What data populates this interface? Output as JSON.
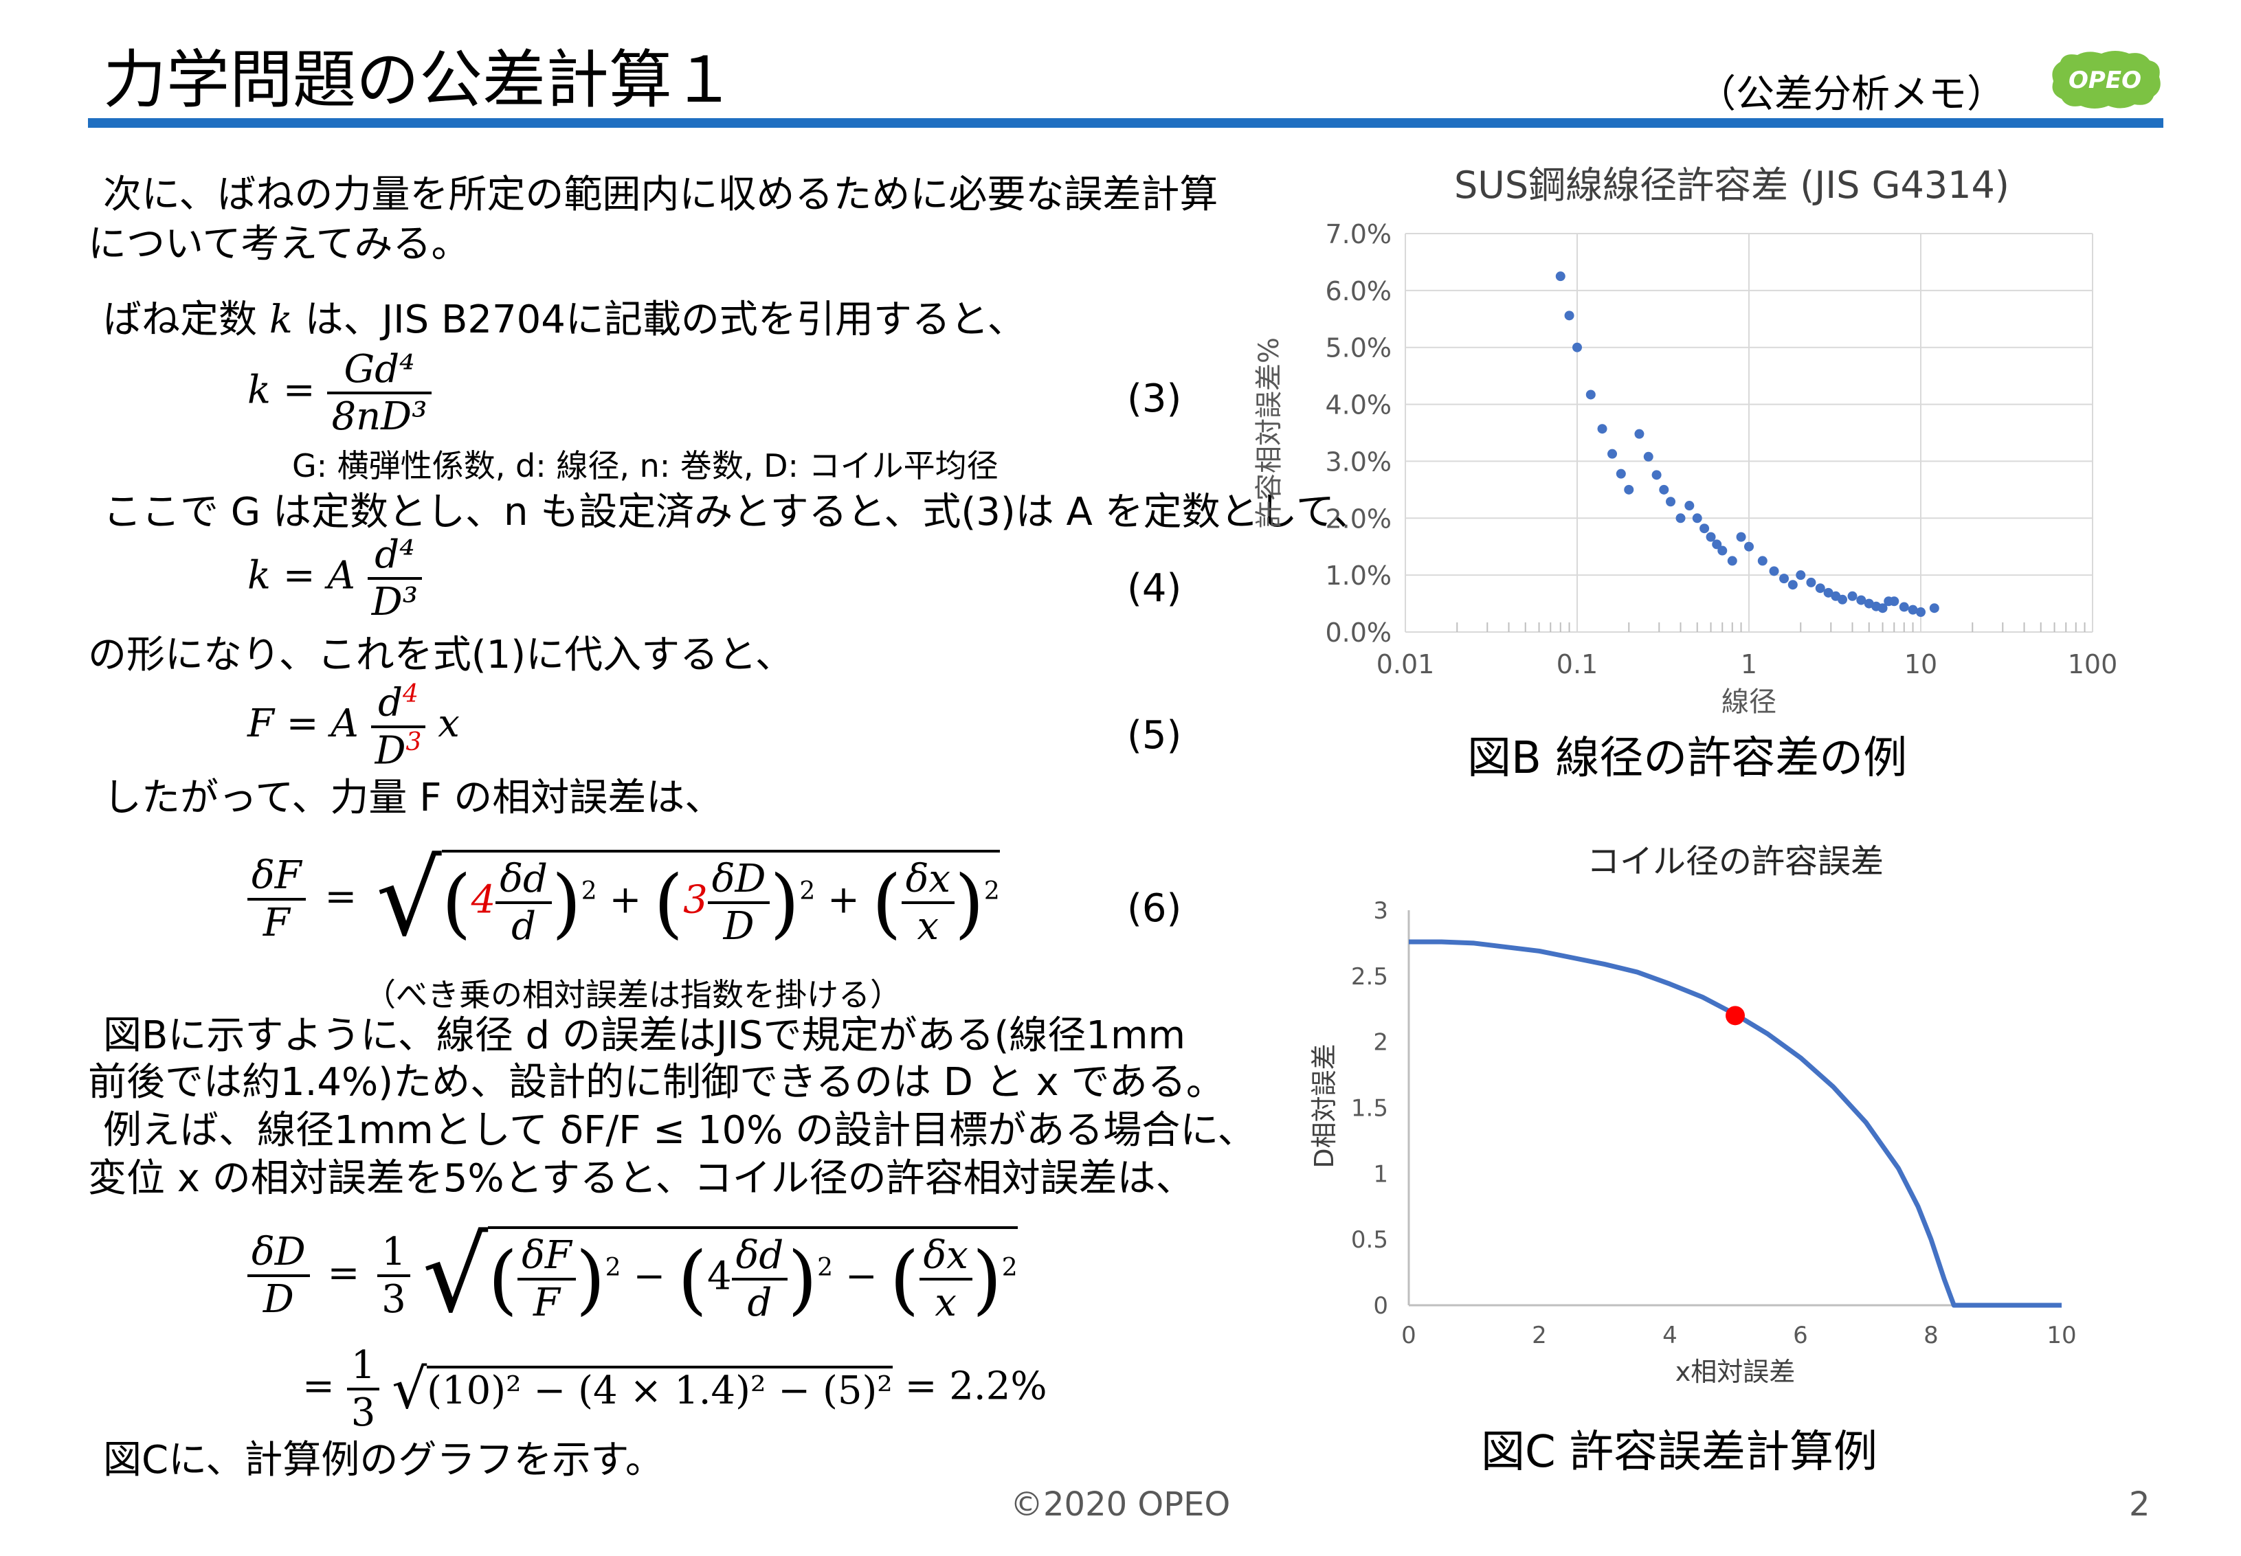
{
  "header": {
    "title": "力学問題の公差計算１",
    "subtitle": "（公差分析メモ）",
    "logo_text": "OPEO"
  },
  "body": {
    "p1_line1": "次に、ばねの力量を所定の範囲内に収めるために必要な誤差計算",
    "p1_line2": "について考えてみる。",
    "p2_a": "ばね定数",
    "p2_k": "k",
    "p2_b": "は、JIS B2704に記載の式を引用すると、",
    "eq3_lhs": "k =",
    "eq3_num": "Gd⁴",
    "eq3_den": "8nD³",
    "eq3_no": "(3)",
    "eq3_note": "G: 横弾性係数, d: 線径, n: 巻数, D: コイル平均径",
    "p3": "ここで G は定数とし、n も設定済みとすると、式(3)は A を定数として、",
    "eq4_lhs": "k = A",
    "eq4_num": "d⁴",
    "eq4_den": "D³",
    "eq4_no": "(4)",
    "p4": "の形になり、これを式(1)に代入すると、",
    "eq5_lhs": "F = A",
    "eq5_num_base": "d",
    "eq5_num_exp": "4",
    "eq5_den_base": "D",
    "eq5_den_exp": "3",
    "eq5_tail": "x",
    "eq5_no": "(5)",
    "p5": "したがって、力量 F の相対誤差は、",
    "eq6_lhs_num": "δF",
    "eq6_lhs_den": "F",
    "eq6_c1": "4",
    "eq6_t1_num": "δd",
    "eq6_t1_den": "d",
    "eq6_c2": "3",
    "eq6_t2_num": "δD",
    "eq6_t2_den": "D",
    "eq6_t3_num": "δx",
    "eq6_t3_den": "x",
    "eq6_no": "(6)",
    "eq6_note": "（べき乗の相対誤差は指数を掛ける）",
    "p6_line1": "図Bに示すように、線径 d の誤差はJISで規定がある(線径1mm",
    "p6_line2": "前後では約1.4%)ため、設計的に制御できるのは D と x である。",
    "p7_line1": "例えば、線径1mmとして δF/F ≤ 10% の設計目標がある場合に、",
    "p7_line2": "変位 x の相対誤差を5%とすると、コイル径の許容相対誤差は、",
    "eq7_lhs_num": "δD",
    "eq7_lhs_den": "D",
    "eq7_coef_num": "1",
    "eq7_coef_den": "3",
    "eq7_c": "4",
    "eq8_coef_num": "1",
    "eq8_coef_den": "3",
    "eq8_radicand": "(10)² − (4 × 1.4)² − (5)²",
    "eq8_result": "= 2.2%",
    "p8": "図Cに、計算例のグラフを示す。"
  },
  "figB": {
    "caption": "図B 線径の許容差の例"
  },
  "figC": {
    "caption": "図C 許容誤差計算例"
  },
  "footer": {
    "copyright": "©2020 OPEO",
    "page": "2"
  },
  "colors": {
    "accent": "#1f6fc1",
    "series": "#4472c4",
    "marker": "#ff0000",
    "logo": "#7cc243"
  },
  "chart_data": [
    {
      "type": "scatter",
      "title": "SUS鋼線線径許容差 (JIS G4314)",
      "xlabel": "線径",
      "ylabel": "許容相対誤差%",
      "x_scale": "log",
      "xlim": [
        0.01,
        100
      ],
      "ylim": [
        0,
        0.07
      ],
      "x_ticks": [
        "0.01",
        "0.1",
        "1",
        "10",
        "100"
      ],
      "y_ticks": [
        "0.0%",
        "1.0%",
        "2.0%",
        "3.0%",
        "4.0%",
        "5.0%",
        "6.0%",
        "7.0%"
      ],
      "grid": true,
      "points": [
        [
          0.08,
          0.0625
        ],
        [
          0.09,
          0.0556
        ],
        [
          0.1,
          0.05
        ],
        [
          0.12,
          0.0417
        ],
        [
          0.14,
          0.0357
        ],
        [
          0.16,
          0.0313
        ],
        [
          0.18,
          0.0278
        ],
        [
          0.2,
          0.025
        ],
        [
          0.23,
          0.0348
        ],
        [
          0.26,
          0.0308
        ],
        [
          0.29,
          0.0276
        ],
        [
          0.32,
          0.025
        ],
        [
          0.35,
          0.0229
        ],
        [
          0.4,
          0.02
        ],
        [
          0.45,
          0.0222
        ],
        [
          0.5,
          0.02
        ],
        [
          0.55,
          0.0182
        ],
        [
          0.6,
          0.0167
        ],
        [
          0.65,
          0.0154
        ],
        [
          0.7,
          0.0143
        ],
        [
          0.8,
          0.0125
        ],
        [
          0.9,
          0.0167
        ],
        [
          1.0,
          0.015
        ],
        [
          1.2,
          0.0125
        ],
        [
          1.4,
          0.0107
        ],
        [
          1.6,
          0.0094
        ],
        [
          1.8,
          0.0083
        ],
        [
          2.0,
          0.01
        ],
        [
          2.3,
          0.0087
        ],
        [
          2.6,
          0.0077
        ],
        [
          2.9,
          0.0069
        ],
        [
          3.2,
          0.0063
        ],
        [
          3.5,
          0.0057
        ],
        [
          4.0,
          0.0063
        ],
        [
          4.5,
          0.0056
        ],
        [
          5.0,
          0.005
        ],
        [
          5.5,
          0.0045
        ],
        [
          6.0,
          0.0042
        ],
        [
          6.5,
          0.0054
        ],
        [
          7.0,
          0.0054
        ],
        [
          8.0,
          0.0044
        ],
        [
          9.0,
          0.0039
        ],
        [
          10.0,
          0.0035
        ],
        [
          12.0,
          0.0042
        ]
      ]
    },
    {
      "type": "line",
      "title": "コイル径の許容誤差",
      "xlabel": "x相対誤差",
      "ylabel": "D相対誤差",
      "xlim": [
        0,
        10
      ],
      "ylim": [
        0,
        3
      ],
      "x_ticks": [
        "0",
        "2",
        "4",
        "6",
        "8",
        "10"
      ],
      "y_ticks": [
        "0",
        "0.5",
        "1",
        "1.5",
        "2",
        "2.5",
        "3"
      ],
      "grid": false,
      "x": [
        0,
        0.5,
        1,
        1.5,
        2,
        2.5,
        3,
        3.5,
        4,
        4.5,
        5,
        5.5,
        6,
        6.5,
        7,
        7.5,
        7.8,
        8.0,
        8.2,
        8.35,
        8.4,
        8.5,
        9,
        9.5,
        10
      ],
      "y": [
        2.76,
        2.76,
        2.75,
        2.72,
        2.69,
        2.64,
        2.59,
        2.53,
        2.44,
        2.34,
        2.21,
        2.06,
        1.88,
        1.66,
        1.39,
        1.04,
        0.75,
        0.5,
        0.2,
        0.0,
        0.0,
        0.0,
        0.0,
        0.0,
        0.0
      ],
      "highlight_point": [
        5,
        2.2
      ]
    }
  ]
}
